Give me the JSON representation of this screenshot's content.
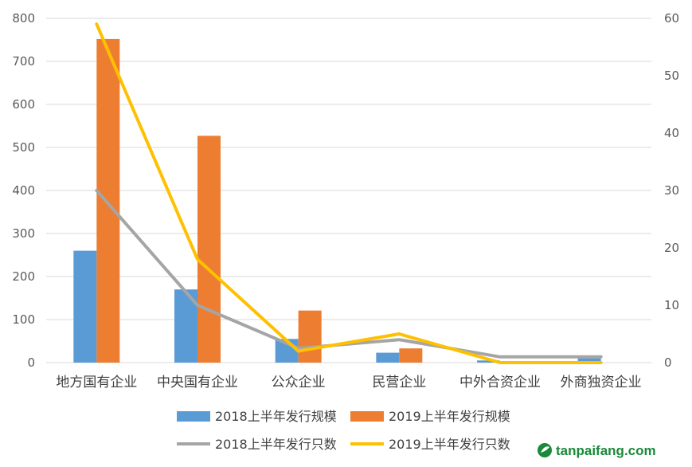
{
  "chart_data": {
    "type": "bar",
    "categories": [
      "地方国有企业",
      "中央国有企业",
      "公众企业",
      "民营企业",
      "中外合资企业",
      "外商独资企业"
    ],
    "series": [
      {
        "name": "2018上半年发行规模",
        "type": "bar",
        "axis": "left",
        "color": "#5b9bd5",
        "values": [
          260,
          170,
          55,
          23,
          5,
          10
        ]
      },
      {
        "name": "2019上半年发行规模",
        "type": "bar",
        "axis": "left",
        "color": "#ed7d31",
        "values": [
          752,
          527,
          121,
          33,
          0,
          0
        ]
      },
      {
        "name": "2018上半年发行只数",
        "type": "line",
        "axis": "right",
        "color": "#a5a5a5",
        "values": [
          30,
          10,
          2.5,
          4,
          1,
          1
        ]
      },
      {
        "name": "2019上半年发行只数",
        "type": "line",
        "axis": "right",
        "color": "#ffc000",
        "values": [
          59,
          18,
          2,
          5,
          0,
          0
        ]
      }
    ],
    "y_left": {
      "ylim": [
        0,
        800
      ],
      "ticks": [
        "0",
        "100",
        "200",
        "300",
        "400",
        "500",
        "600",
        "700",
        "800"
      ]
    },
    "y_right": {
      "ylim": [
        0,
        60
      ],
      "ticks": [
        "0",
        "10",
        "20",
        "30",
        "40",
        "50",
        "60"
      ]
    },
    "grid": true,
    "legend": "bottom",
    "title": "",
    "xlabel": "",
    "ylabel": ""
  },
  "watermark": {
    "text": "tanpaifang.com",
    "color": "#1a8a3a"
  }
}
